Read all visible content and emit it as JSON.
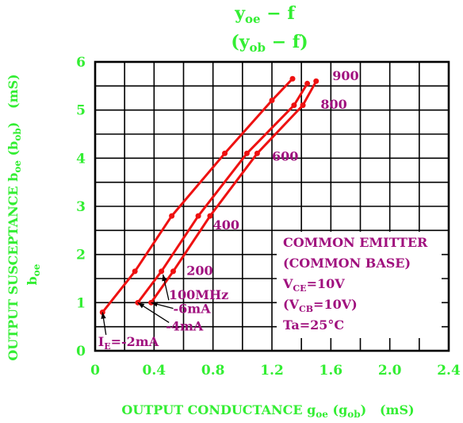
{
  "chart_data": {
    "type": "line",
    "title": [
      "y",
      "oe",
      " − f"
    ],
    "subtitle": [
      "(y",
      "ob",
      " − f)"
    ],
    "xlabel": {
      "main": "OUTPUT CONDUCTANCE g",
      "sub1": "oe",
      "mid": " (g",
      "sub2": "ob",
      "end": ")   (mS)"
    },
    "ylabel": {
      "line1": "OUTPUT SUSCEPTANCE b",
      "line1_sub": "oe",
      "line1_mid": " (b",
      "line1_sub2": "ob",
      "line1_end": ")   (mS)",
      "line2": "b",
      "line2_sub": "oe"
    },
    "xlim": [
      0,
      2.4
    ],
    "ylim": [
      0,
      6
    ],
    "x_ticks": [
      "0",
      "0.4",
      "0.8",
      "1.2",
      "1.6",
      "2.0",
      "2.4"
    ],
    "y_ticks": [
      "0",
      "1",
      "2",
      "3",
      "4",
      "5",
      "6"
    ],
    "grid": true,
    "series": [
      {
        "name": "IE=-2mA",
        "points": [
          [
            0.05,
            0.8
          ],
          [
            0.27,
            1.65
          ],
          [
            0.52,
            2.8
          ],
          [
            0.88,
            4.1
          ],
          [
            1.2,
            5.2
          ],
          [
            1.34,
            5.65
          ]
        ]
      },
      {
        "name": "-4mA",
        "points": [
          [
            0.29,
            1.0
          ],
          [
            0.45,
            1.65
          ],
          [
            0.7,
            2.8
          ],
          [
            1.03,
            4.1
          ],
          [
            1.35,
            5.1
          ],
          [
            1.44,
            5.55
          ]
        ]
      },
      {
        "name": "-6mA",
        "points": [
          [
            0.38,
            1.0
          ],
          [
            0.53,
            1.65
          ],
          [
            0.78,
            2.8
          ],
          [
            1.1,
            4.1
          ],
          [
            1.41,
            5.1
          ],
          [
            1.5,
            5.6
          ]
        ]
      }
    ],
    "frequency_labels": [
      {
        "text": "100MHz",
        "x": 0.5,
        "y": 1.17
      },
      {
        "text": "200",
        "x": 0.62,
        "y": 1.67
      },
      {
        "text": "400",
        "x": 0.8,
        "y": 2.62
      },
      {
        "text": "600",
        "x": 1.2,
        "y": 4.05
      },
      {
        "text": "800",
        "x": 1.53,
        "y": 5.13
      },
      {
        "text": "900",
        "x": 1.61,
        "y": 5.72
      }
    ],
    "curve_labels": [
      {
        "text": "-6mA",
        "x": 0.53,
        "y": 0.88
      },
      {
        "text": "-4mA",
        "x": 0.48,
        "y": 0.52
      },
      {
        "main": "I",
        "sub": "E",
        "rest": "=-2mA",
        "x": 0.02,
        "y": 0.2
      }
    ],
    "legend_box": {
      "line1": "COMMON EMITTER",
      "line2": "(COMMON BASE)",
      "line3": {
        "main": "V",
        "sub": "CE",
        "rest": "=10V"
      },
      "line4": {
        "main": "(V",
        "sub": "CB",
        "rest": "=10V)"
      },
      "line5": "Ta=25°C"
    },
    "colors": {
      "curve": "#ee1111",
      "annotation": "#a0107e",
      "label": "#33ee33",
      "grid": "#000000"
    }
  }
}
